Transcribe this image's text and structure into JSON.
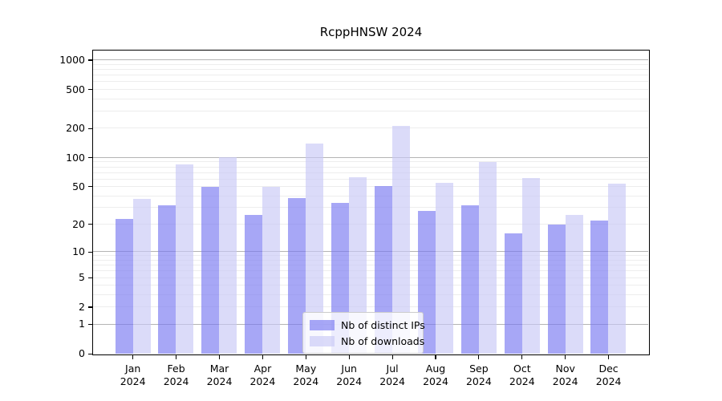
{
  "title": "RcppHNSW 2024",
  "legend": {
    "position": "lower center",
    "items": [
      {
        "label": "Nb of distinct IPs"
      },
      {
        "label": "Nb of downloads"
      }
    ]
  },
  "chart_data": {
    "type": "bar",
    "title": "RcppHNSW 2024",
    "categories": [
      "Jan 2024",
      "Feb 2024",
      "Mar 2024",
      "Apr 2024",
      "May 2024",
      "Jun 2024",
      "Jul 2024",
      "Aug 2024",
      "Sep 2024",
      "Oct 2024",
      "Nov 2024",
      "Dec 2024"
    ],
    "series": [
      {
        "name": "Nb of distinct IPs",
        "color": "#7a7af2",
        "alpha": 0.66,
        "values": [
          23,
          32,
          50,
          25,
          38,
          34,
          51,
          28,
          32,
          16,
          20,
          22
        ]
      },
      {
        "name": "Nb of downloads",
        "color": "#c8c8f6",
        "alpha": 0.66,
        "values": [
          37,
          85,
          100,
          50,
          140,
          63,
          210,
          55,
          90,
          61,
          25,
          54
        ]
      }
    ],
    "xlabel": "",
    "ylabel": "",
    "yscale": "log1p",
    "y_ticks": [
      0,
      1,
      2,
      5,
      10,
      20,
      50,
      100,
      200,
      500,
      1000
    ],
    "y_max": 1250,
    "grid": "horizontal; light minor log gridlines, darker gridlines at 1/10/100/1000",
    "legend_position": "lower center",
    "colors": {
      "major_grid": "#b4b4b4",
      "minor_grid": "#ededed",
      "spine": "#000000"
    }
  }
}
